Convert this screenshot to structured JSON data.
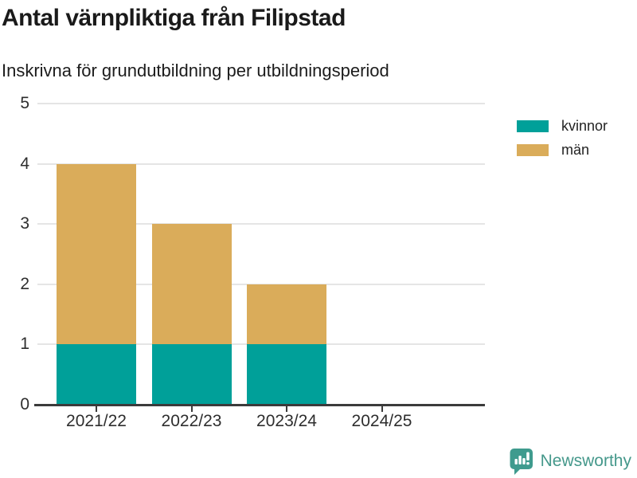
{
  "chart_data": {
    "type": "bar",
    "stacked": true,
    "title": "Antal värnpliktiga från Filipstad",
    "subtitle": "Inskrivna för grundutbildning per utbildningsperiod",
    "categories": [
      "2021/22",
      "2022/23",
      "2023/24",
      "2024/25"
    ],
    "series": [
      {
        "name": "kvinnor",
        "color": "#00a099",
        "values": [
          1,
          1,
          1,
          0
        ]
      },
      {
        "name": "män",
        "color": "#daac5a",
        "values": [
          3,
          2,
          1,
          0
        ]
      }
    ],
    "totals": [
      4,
      3,
      2,
      0
    ],
    "ylim": [
      0,
      5
    ],
    "yticks": [
      0,
      1,
      2,
      3,
      4,
      5
    ],
    "grid": true,
    "grid_color": "#e5e5e5",
    "axis_color": "#3b3b3b",
    "legend_position": "right"
  },
  "footer": {
    "brand": "Newsworthy",
    "brand_color": "#45988b",
    "logo_icon": "bar-chart-speech-bubble-icon",
    "logo_bg_color": "#3f9b8e"
  }
}
